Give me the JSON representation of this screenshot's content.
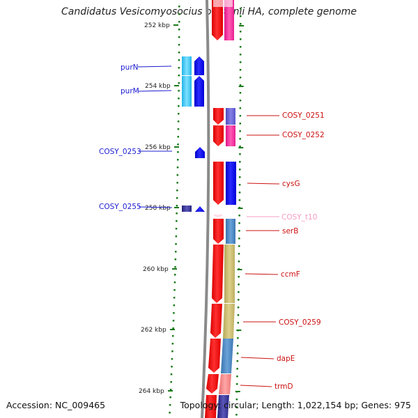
{
  "title": "Candidatus Vesicomyosocius okutanii HA, complete genome",
  "footer": {
    "accession": "Accession: NC_009465",
    "summary": "Topology: circular; Length: 1,022,154 bp; Genes: 975"
  },
  "ticks": [
    {
      "label": "252 kbp"
    },
    {
      "label": "254 kbp"
    },
    {
      "label": "256 kbp"
    },
    {
      "label": "258 kbp"
    },
    {
      "label": "260 kbp"
    },
    {
      "label": "262 kbp"
    },
    {
      "label": "264 kbp"
    }
  ],
  "left_genes": [
    {
      "label": "purN",
      "color": "#1c1cd0"
    },
    {
      "label": "purM",
      "color": "#1c1cd0"
    },
    {
      "label": "COSY_0253",
      "color": "#1c1cd0"
    },
    {
      "label": "COSY_0255",
      "color": "#1c1cd0"
    }
  ],
  "right_genes": [
    {
      "label": "COSY_0251",
      "color": "#cc1111"
    },
    {
      "label": "COSY_0252",
      "color": "#cc1111"
    },
    {
      "label": "cysG",
      "color": "#cc1111"
    },
    {
      "label": "COSY_t10",
      "color": "#f59bc2"
    },
    {
      "label": "serB",
      "color": "#cc1111"
    },
    {
      "label": "ccmF",
      "color": "#cc1111"
    },
    {
      "label": "COSY_0259",
      "color": "#cc1111"
    },
    {
      "label": "dapE",
      "color": "#cc1111"
    },
    {
      "label": "trmD",
      "color": "#cc1111"
    }
  ],
  "colors": {
    "backbone": "#8a8a8a",
    "forward_strand": "#ff0000",
    "reverse_strand": "#0000ff",
    "reverse_cog": "#35c4f0",
    "tick_marks": "#1a7a1a"
  }
}
